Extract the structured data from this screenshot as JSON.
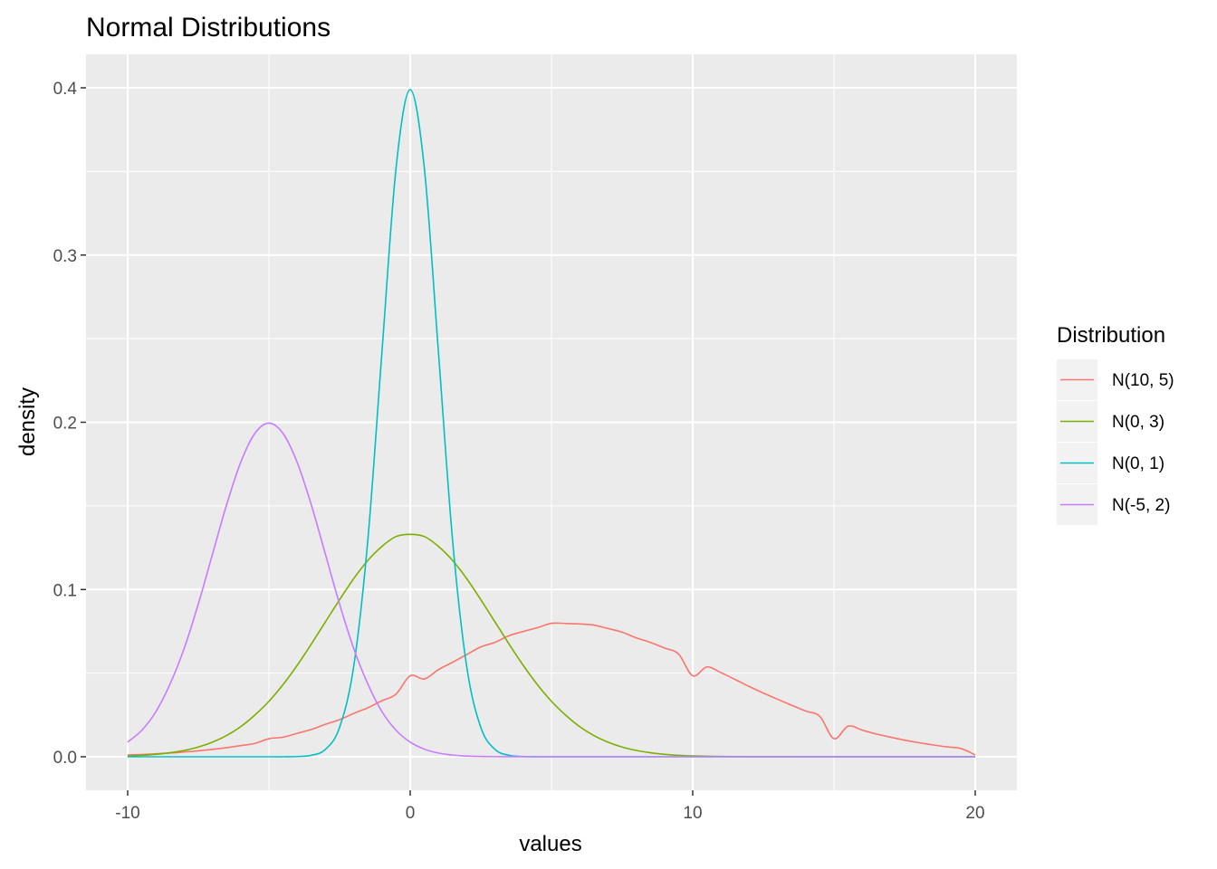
{
  "chart_data": {
    "type": "line",
    "title": "Normal Distributions",
    "xlabel": "values",
    "ylabel": "density",
    "xlim": [
      -10,
      20
    ],
    "ylim": [
      0,
      0.4
    ],
    "x_ticks": [
      -10,
      0,
      10,
      20
    ],
    "x_tick_labels": [
      "-10",
      "0",
      "10",
      "20"
    ],
    "y_ticks": [
      0.0,
      0.1,
      0.2,
      0.3,
      0.4
    ],
    "y_tick_labels": [
      "0.0",
      "0.1",
      "0.2",
      "0.3",
      "0.4"
    ],
    "grid": true,
    "legend": {
      "title": "Distribution",
      "placement": "right"
    },
    "x": [
      -10,
      -9.5,
      -9,
      -8.5,
      -8,
      -7.5,
      -7,
      -6.5,
      -6,
      -5.5,
      -5,
      -4.5,
      -4,
      -3.5,
      -3,
      -2.5,
      -2,
      -1.5,
      -1,
      -0.5,
      0,
      0.5,
      1,
      1.5,
      2,
      2.5,
      3,
      3.5,
      4,
      4.5,
      5,
      5.5,
      6,
      6.5,
      7,
      7.5,
      8,
      8.5,
      9,
      9.5,
      10,
      10.5,
      11,
      11.5,
      12,
      12.5,
      13,
      13.5,
      14,
      14.5,
      15,
      15.5,
      16,
      16.5,
      17,
      17.5,
      18,
      18.5,
      19,
      19.5,
      20
    ],
    "series": [
      {
        "name": "N(10, 5)",
        "color": "#F8766D",
        "values": [
          0.00107,
          0.00135,
          0.00177,
          0.00224,
          0.00288,
          0.00357,
          0.00443,
          0.00546,
          0.00665,
          0.00798,
          0.0108,
          0.0117,
          0.014,
          0.0163,
          0.0194,
          0.0222,
          0.0259,
          0.0293,
          0.0335,
          0.0375,
          0.0484,
          0.0465,
          0.0521,
          0.0565,
          0.0611,
          0.0657,
          0.0684,
          0.0724,
          0.0749,
          0.0772,
          0.0798,
          0.0797,
          0.0794,
          0.0787,
          0.0767,
          0.0745,
          0.0711,
          0.0684,
          0.065,
          0.0614,
          0.0484,
          0.0537,
          0.0503,
          0.0462,
          0.042,
          0.0381,
          0.0344,
          0.0308,
          0.0273,
          0.0241,
          0.0108,
          0.0183,
          0.0159,
          0.0136,
          0.0117,
          0.0099,
          0.0084,
          0.0071,
          0.0059,
          0.0049,
          0.00107
        ]
      },
      {
        "name": "N(0, 3)",
        "color": "#7CAE00",
        "values": [
          0.00051,
          0.00088,
          0.00148,
          0.00242,
          0.0038,
          0.00583,
          0.00874,
          0.01267,
          0.01799,
          0.0249,
          0.03315,
          0.04317,
          0.05467,
          0.06736,
          0.08066,
          0.09389,
          0.1065,
          0.1174,
          0.1258,
          0.1317,
          0.133,
          0.1317,
          0.1258,
          0.1174,
          0.1065,
          0.09389,
          0.08066,
          0.06736,
          0.05467,
          0.04317,
          0.03315,
          0.0249,
          0.01799,
          0.01267,
          0.00874,
          0.00583,
          0.0038,
          0.00242,
          0.00148,
          0.00088,
          0.00051,
          0.00029,
          0.00016,
          9e-05,
          5e-05,
          2e-05,
          1e-05,
          0,
          0,
          0,
          0,
          0,
          0,
          0,
          0,
          0,
          0,
          0,
          0,
          0,
          0
        ]
      },
      {
        "name": "N(0, 1)",
        "color": "#00BFC4",
        "values": [
          0,
          0,
          0,
          0,
          0,
          0,
          0,
          0,
          0,
          0,
          0,
          0,
          0.00013,
          0.00087,
          0.00443,
          0.01753,
          0.05399,
          0.1295,
          0.242,
          0.3521,
          0.3989,
          0.3521,
          0.242,
          0.1295,
          0.05399,
          0.01753,
          0.00443,
          0.00087,
          0.00013,
          2e-05,
          0,
          0,
          0,
          0,
          0,
          0,
          0,
          0,
          0,
          0,
          0,
          0,
          0,
          0,
          0,
          0,
          0,
          0,
          0,
          0,
          0,
          0,
          0,
          0,
          0,
          0,
          0,
          0,
          0,
          0,
          0
        ]
      },
      {
        "name": "N(-5, 2)",
        "color": "#C77CFF",
        "values": [
          0.00876,
          0.01583,
          0.027,
          0.04352,
          0.06476,
          0.09132,
          0.121,
          0.1506,
          0.176,
          0.1933,
          0.1995,
          0.1933,
          0.176,
          0.1506,
          0.121,
          0.09132,
          0.06476,
          0.04352,
          0.027,
          0.01583,
          0.00876,
          0.00457,
          0.00222,
          0.00102,
          0.00044,
          0.00018,
          7e-05,
          2e-05,
          1e-05,
          0,
          0,
          0,
          0,
          0,
          0,
          0,
          0,
          0,
          0,
          0,
          0,
          0,
          0,
          0,
          0,
          0,
          0,
          0,
          0,
          0,
          0,
          0,
          0,
          0,
          0,
          0,
          0,
          0,
          0,
          0,
          0
        ]
      }
    ]
  }
}
